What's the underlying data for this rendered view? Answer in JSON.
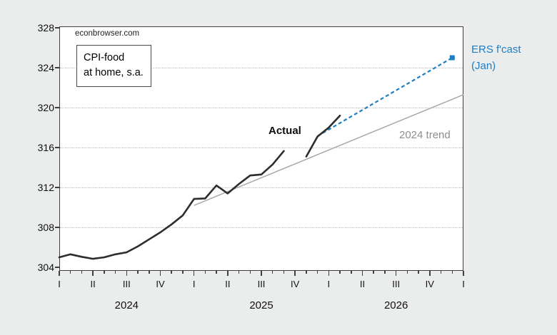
{
  "watermark": "econbrowser.com",
  "legend_box": {
    "line1": "CPI-food",
    "line2": "at home, s.a."
  },
  "annotations": {
    "actual_label": "Actual",
    "trend_label": "2024 trend",
    "forecast_label_line1": "ERS f'cast",
    "forecast_label_line2": "(Jan)"
  },
  "colors": {
    "page_bg": "#ebecec",
    "plot_bg": "#ffffff",
    "frame": "#3f3f3f",
    "grid": "#bdbdbd",
    "actual_line": "#2d2d2d",
    "trend_line": "#a8a8a8",
    "trend_text": "#8f8f8f",
    "forecast_blue": "#1e7ec4",
    "text": "#111111"
  },
  "y_axis": {
    "tick_labels": [
      "328",
      "324",
      "320",
      "316",
      "312",
      "308",
      "304"
    ],
    "tick_values": [
      328,
      324,
      320,
      316,
      312,
      308,
      304
    ],
    "gridline_values": [
      324,
      320,
      316,
      312,
      308
    ]
  },
  "x_axis": {
    "quarter_labels": [
      "I",
      "II",
      "III",
      "IV",
      "I",
      "II",
      "III",
      "IV",
      "I",
      "II",
      "III",
      "IV",
      "I"
    ],
    "year_labels": [
      "2024",
      "2025",
      "2026"
    ],
    "year_center_month_index": [
      6,
      18,
      30
    ],
    "months_total": 36
  },
  "chart_data": {
    "type": "line",
    "title": "CPI-food at home, s.a.",
    "source_watermark": "econbrowser.com",
    "ylim": [
      304,
      328
    ],
    "x_unit": "months, Jan 2024 = index 0; axis marked in quarters I-IV for 2024, 2025, 2026",
    "grid": "horizontal dotted",
    "series": [
      {
        "name": "Actual",
        "style": "solid",
        "color": "#2d2d2d",
        "segments": [
          {
            "start_month_index": 0,
            "months": [
              "2024-01",
              "2024-02",
              "2024-03",
              "2024-04",
              "2024-05",
              "2024-06",
              "2024-07",
              "2024-08",
              "2024-09",
              "2024-10",
              "2024-11",
              "2024-12",
              "2025-01",
              "2025-02",
              "2025-03",
              "2025-04",
              "2025-05",
              "2025-06",
              "2025-07",
              "2025-08",
              "2025-09"
            ],
            "values": [
              305.0,
              305.3,
              305.05,
              304.85,
              305.0,
              305.3,
              305.5,
              306.1,
              306.8,
              307.5,
              308.3,
              309.2,
              310.85,
              310.9,
              312.2,
              311.4,
              312.35,
              313.2,
              313.3,
              314.3,
              315.65
            ]
          },
          {
            "start_month_index": 22,
            "months": [
              "2025-11",
              "2025-12",
              "2026-01",
              "2026-02"
            ],
            "values": [
              315.1,
              317.1,
              318.0,
              319.2
            ]
          }
        ]
      },
      {
        "name": "2024 trend",
        "style": "solid",
        "color": "#a8a8a8",
        "line": {
          "start_month_index": 12,
          "start_value": 310.2,
          "end_month_index": 36,
          "end_value": 321.3
        }
      },
      {
        "name": "ERS f'cast (Jan)",
        "style": "dashed",
        "color": "#1e7ec4",
        "end_marker": "square",
        "line": {
          "start_month_index": 23,
          "start_value": 317.15,
          "end_month_index": 35,
          "end_value": 325.0
        }
      }
    ]
  }
}
